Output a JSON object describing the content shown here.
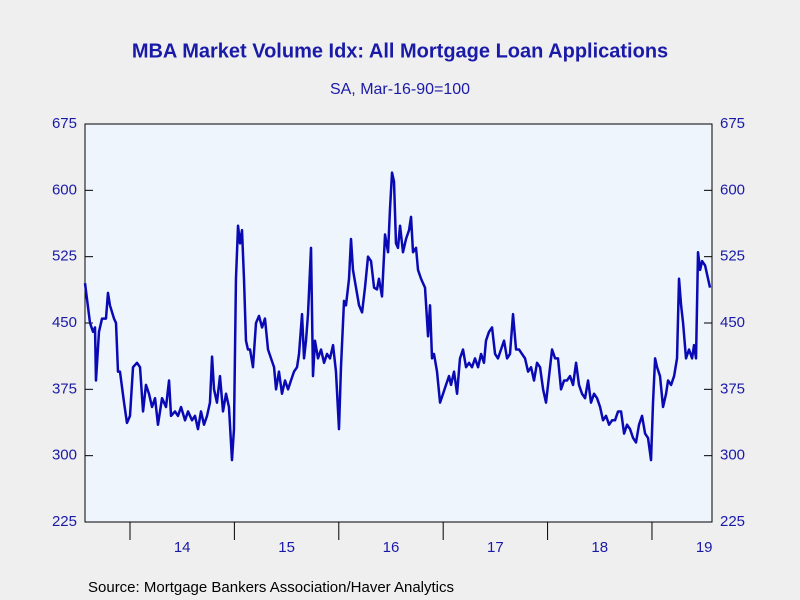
{
  "chart_data": {
    "type": "line",
    "title": "MBA Market Volume Idx: All Mortgage Loan Applications",
    "subtitle": "SA, Mar-16-90=100",
    "source": "Source:  Mortgage Bankers Association/Haver Analytics",
    "color": "#0a0ab4",
    "x": [
      2013.569,
      2013.617,
      2013.646,
      2013.665,
      2013.674,
      2013.703,
      2013.732,
      2013.77,
      2013.789,
      2013.808,
      2013.847,
      2013.866,
      2013.885,
      2013.904,
      2013.943,
      2013.971,
      2014.0,
      2014.029,
      2014.067,
      2014.096,
      2014.125,
      2014.153,
      2014.182,
      2014.211,
      2014.24,
      2014.268,
      2014.307,
      2014.345,
      2014.374,
      2014.393,
      2014.431,
      2014.46,
      2014.489,
      2014.527,
      2014.556,
      2014.594,
      2014.623,
      2014.651,
      2014.68,
      2014.709,
      2014.738,
      2014.766,
      2014.786,
      2014.805,
      2014.833,
      2014.862,
      2014.891,
      2014.92,
      2014.948,
      2014.977,
      2014.996,
      2015.015,
      2015.035,
      2015.054,
      2015.073,
      2015.092,
      2015.111,
      2015.13,
      2015.15,
      2015.178,
      2015.207,
      2015.236,
      2015.265,
      2015.293,
      2015.322,
      2015.351,
      2015.38,
      2015.399,
      2015.427,
      2015.456,
      2015.485,
      2015.514,
      2015.542,
      2015.571,
      2015.6,
      2015.619,
      2015.648,
      2015.667,
      2015.686,
      2015.705,
      2015.734,
      2015.753,
      2015.772,
      2015.801,
      2015.83,
      2015.859,
      2015.887,
      2015.916,
      2015.945,
      2015.973,
      2016.002,
      2016.021,
      2016.05,
      2016.069,
      2016.098,
      2016.117,
      2016.136,
      2016.165,
      2016.194,
      2016.223,
      2016.251,
      2016.28,
      2016.309,
      2016.338,
      2016.366,
      2016.385,
      2016.414,
      2016.443,
      2016.472,
      2016.491,
      2016.51,
      2016.529,
      2016.548,
      2016.567,
      2016.587,
      2016.615,
      2016.644,
      2016.673,
      2016.692,
      2016.711,
      2016.74,
      2016.759,
      2016.788,
      2016.807,
      2016.826,
      2016.855,
      2016.874,
      2016.893,
      2016.912,
      2016.941,
      2016.97,
      2016.999,
      2017.027,
      2017.056,
      2017.075,
      2017.104,
      2017.133,
      2017.161,
      2017.19,
      2017.219,
      2017.248,
      2017.276,
      2017.305,
      2017.334,
      2017.363,
      2017.391,
      2017.41,
      2017.439,
      2017.468,
      2017.497,
      2017.525,
      2017.554,
      2017.583,
      2017.612,
      2017.64,
      2017.669,
      2017.698,
      2017.727,
      2017.755,
      2017.784,
      2017.813,
      2017.842,
      2017.87,
      2017.899,
      2017.928,
      2017.957,
      2017.985,
      2018.014,
      2018.043,
      2018.072,
      2018.1,
      2018.129,
      2018.158,
      2018.186,
      2018.215,
      2018.244,
      2018.273,
      2018.301,
      2018.33,
      2018.359,
      2018.388,
      2018.416,
      2018.445,
      2018.474,
      2018.503,
      2018.531,
      2018.56,
      2018.589,
      2018.618,
      2018.646,
      2018.675,
      2018.704,
      2018.733,
      2018.761,
      2018.79,
      2018.819,
      2018.847,
      2018.876,
      2018.905,
      2018.934,
      2018.962,
      2018.991,
      2019.01,
      2019.03,
      2019.049,
      2019.077,
      2019.106,
      2019.135,
      2019.154,
      2019.183,
      2019.212,
      2019.24,
      2019.259,
      2019.279,
      2019.298,
      2019.326,
      2019.355,
      2019.384,
      2019.403,
      2019.422,
      2019.441,
      2019.461,
      2019.48,
      2019.509,
      2019.537,
      2019.556
    ],
    "values": [
      495,
      450,
      440,
      445,
      385,
      440,
      455,
      455,
      484,
      470,
      455,
      450,
      395,
      395,
      360,
      337,
      345,
      400,
      405,
      400,
      350,
      380,
      370,
      355,
      365,
      335,
      365,
      355,
      385,
      345,
      350,
      345,
      355,
      340,
      350,
      340,
      345,
      330,
      350,
      335,
      345,
      360,
      412,
      375,
      360,
      390,
      350,
      370,
      355,
      295,
      330,
      500,
      560,
      540,
      555,
      500,
      430,
      420,
      420,
      400,
      450,
      458,
      445,
      455,
      420,
      410,
      400,
      375,
      395,
      370,
      385,
      375,
      385,
      395,
      400,
      415,
      460,
      410,
      430,
      460,
      535,
      390,
      430,
      410,
      420,
      405,
      415,
      410,
      425,
      395,
      330,
      400,
      475,
      470,
      500,
      545,
      510,
      490,
      470,
      462,
      490,
      525,
      520,
      490,
      488,
      500,
      480,
      550,
      530,
      580,
      620,
      610,
      540,
      535,
      560,
      530,
      545,
      555,
      570,
      530,
      535,
      510,
      500,
      495,
      490,
      435,
      470,
      410,
      415,
      395,
      360,
      370,
      380,
      390,
      380,
      395,
      370,
      410,
      420,
      400,
      405,
      400,
      410,
      400,
      415,
      405,
      430,
      440,
      445,
      415,
      410,
      420,
      430,
      410,
      415,
      460,
      420,
      420,
      415,
      410,
      395,
      400,
      385,
      405,
      400,
      375,
      360,
      390,
      420,
      410,
      410,
      375,
      385,
      385,
      390,
      380,
      405,
      380,
      370,
      365,
      385,
      360,
      370,
      365,
      355,
      340,
      345,
      335,
      340,
      340,
      350,
      350,
      325,
      335,
      330,
      320,
      315,
      335,
      345,
      325,
      320,
      295,
      360,
      410,
      400,
      390,
      355,
      370,
      385,
      380,
      390,
      410,
      500,
      470,
      450,
      410,
      420,
      410,
      425,
      410,
      530,
      510,
      520,
      515,
      500,
      490
    ],
    "xlim": [
      2013.569,
      2019.575
    ],
    "xticks": [
      {
        "value": 2014,
        "label": "14"
      },
      {
        "value": 2015,
        "label": "15"
      },
      {
        "value": 2016,
        "label": "16"
      },
      {
        "value": 2017,
        "label": "17"
      },
      {
        "value": 2018,
        "label": "18"
      },
      {
        "value": 2019,
        "label": "19"
      }
    ],
    "ylim": [
      225,
      675
    ],
    "yticks": [
      225,
      300,
      375,
      450,
      525,
      600,
      675
    ]
  }
}
